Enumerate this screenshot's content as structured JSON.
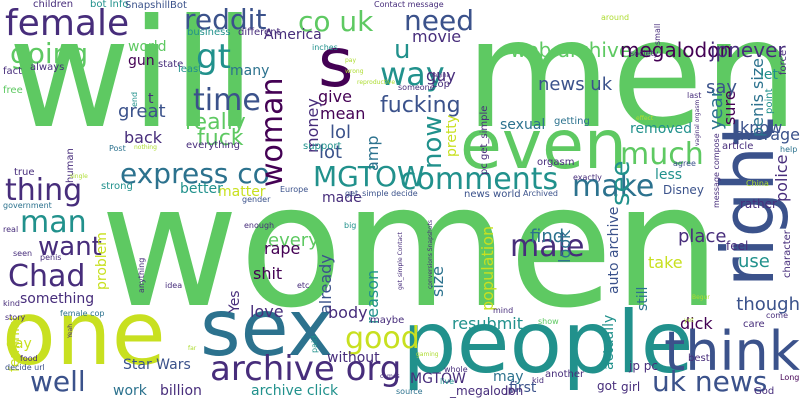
{
  "colors": {
    "background": "#ffffff",
    "palette": [
      "#440154",
      "#472d7b",
      "#3b528b",
      "#2c728e",
      "#21918c",
      "#28ae80",
      "#5ec962",
      "#addc30",
      "#fde725"
    ]
  },
  "words": [
    {
      "text": "women",
      "color": "#5ec962"
    },
    {
      "text": "will",
      "color": "#5ec962"
    },
    {
      "text": "men",
      "color": "#5ec962"
    },
    {
      "text": "people",
      "color": "#21918c"
    },
    {
      "text": "one",
      "color": "#c8e020"
    },
    {
      "text": "sex",
      "color": "#2c728e"
    },
    {
      "text": "right",
      "color": "#3b528b"
    },
    {
      "text": "even",
      "color": "#5ec962"
    },
    {
      "text": "s",
      "color": "#440154"
    },
    {
      "text": "think",
      "color": "#3b528b"
    },
    {
      "text": "female",
      "color": "#472d7b"
    },
    {
      "text": "archive org",
      "color": "#472d7b"
    },
    {
      "text": "uk news",
      "color": "#3b528b"
    },
    {
      "text": "express co",
      "color": "#2c728e"
    },
    {
      "text": "comments",
      "color": "#21918c"
    },
    {
      "text": "MGTOW",
      "color": "#21918c"
    },
    {
      "text": "make",
      "color": "#2c728e"
    },
    {
      "text": "thing",
      "color": "#472d7b"
    },
    {
      "text": "woman",
      "color": "#440154"
    },
    {
      "text": "going",
      "color": "#5ec962"
    },
    {
      "text": "way",
      "color": "#21918c"
    },
    {
      "text": "co uk",
      "color": "#5ec962"
    },
    {
      "text": "reddit",
      "color": "#3b528b"
    },
    {
      "text": "need",
      "color": "#3b528b"
    },
    {
      "text": "time",
      "color": "#3b528b"
    },
    {
      "text": "gt",
      "color": "#21918c"
    },
    {
      "text": "see",
      "color": "#21918c"
    },
    {
      "text": "much",
      "color": "#5ec962"
    },
    {
      "text": "man",
      "color": "#21918c"
    },
    {
      "text": "want",
      "color": "#472d7b"
    },
    {
      "text": "Chad",
      "color": "#472d7b"
    },
    {
      "text": "well",
      "color": "#3b528b"
    },
    {
      "text": "good",
      "color": "#c8e020"
    },
    {
      "text": "male",
      "color": "#472d7b"
    },
    {
      "text": "now",
      "color": "#21918c"
    },
    {
      "text": "u",
      "color": "#21918c"
    },
    {
      "text": "web archive",
      "color": "#5ec962"
    },
    {
      "text": "megalodon",
      "color": "#440154"
    },
    {
      "text": "jpnever",
      "color": "#472d7b"
    },
    {
      "text": "news uk",
      "color": "#3b528b"
    },
    {
      "text": "fucking",
      "color": "#3b528b"
    },
    {
      "text": "really",
      "color": "#5ec962"
    },
    {
      "text": "fuck",
      "color": "#5ec962"
    },
    {
      "text": "lol",
      "color": "#3b528b"
    },
    {
      "text": "lot",
      "color": "#3b528b"
    },
    {
      "text": "give",
      "color": "#440154"
    },
    {
      "text": "mean",
      "color": "#440154"
    },
    {
      "text": "money",
      "color": "#472d7b"
    },
    {
      "text": "amp",
      "color": "#2c728e"
    },
    {
      "text": "movie",
      "color": "#472d7b"
    },
    {
      "text": "guy",
      "color": "#472d7b"
    },
    {
      "text": "say",
      "color": "#3b528b"
    },
    {
      "text": "year",
      "color": "#2c728e"
    },
    {
      "text": "sure",
      "color": "#440154"
    },
    {
      "text": "know",
      "color": "#3b528b"
    },
    {
      "text": "average",
      "color": "#3b528b"
    },
    {
      "text": "penis size",
      "color": "#2c728e"
    },
    {
      "text": "police",
      "color": "#472d7b"
    },
    {
      "text": "less",
      "color": "#21918c"
    },
    {
      "text": "removed",
      "color": "#21918c"
    },
    {
      "text": "sexual",
      "color": "#2c728e"
    },
    {
      "text": "look",
      "color": "#2c728e"
    },
    {
      "text": "pretty",
      "color": "#c8e020"
    },
    {
      "text": "population",
      "color": "#c8e020"
    },
    {
      "text": "reason",
      "color": "#21918c"
    },
    {
      "text": "size",
      "color": "#2c728e"
    },
    {
      "text": "auto archive",
      "color": "#3b528b"
    },
    {
      "text": "find",
      "color": "#2c728e"
    },
    {
      "text": "place",
      "color": "#472d7b"
    },
    {
      "text": "take",
      "color": "#c8e020"
    },
    {
      "text": "use",
      "color": "#21918c"
    },
    {
      "text": "still",
      "color": "#2c728e"
    },
    {
      "text": "though",
      "color": "#3b528b"
    },
    {
      "text": "dick",
      "color": "#440154"
    },
    {
      "text": "actually",
      "color": "#21918c"
    },
    {
      "text": "resubmit",
      "color": "#21918c"
    },
    {
      "text": "already",
      "color": "#3b528b"
    },
    {
      "text": "every",
      "color": "#5ec962"
    },
    {
      "text": "rape",
      "color": "#440154"
    },
    {
      "text": "shit",
      "color": "#440154"
    },
    {
      "text": "made",
      "color": "#472d7b"
    },
    {
      "text": "body",
      "color": "#472d7b"
    },
    {
      "text": "love",
      "color": "#472d7b"
    },
    {
      "text": "Yes",
      "color": "#472d7b"
    },
    {
      "text": "matter",
      "color": "#c8e020"
    },
    {
      "text": "better",
      "color": "#21918c"
    },
    {
      "text": "great",
      "color": "#3b528b"
    },
    {
      "text": "back",
      "color": "#472d7b"
    },
    {
      "text": "world",
      "color": "#5ec962"
    },
    {
      "text": "gun",
      "color": "#440154"
    },
    {
      "text": "America",
      "color": "#472d7b"
    },
    {
      "text": "many",
      "color": "#2c728e"
    },
    {
      "text": "something",
      "color": "#472d7b"
    },
    {
      "text": "problem",
      "color": "#c8e020"
    },
    {
      "text": "feminist",
      "color": "#c8e020"
    },
    {
      "text": "day",
      "color": "#c8e020"
    },
    {
      "text": "Star Wars",
      "color": "#3b528b"
    },
    {
      "text": "work",
      "color": "#2c728e"
    },
    {
      "text": "billion",
      "color": "#472d7b"
    },
    {
      "text": "archive click",
      "color": "#21918c"
    },
    {
      "text": "without",
      "color": "#472d7b"
    },
    {
      "text": "MGTOW",
      "color": "#472d7b"
    },
    {
      "text": "may",
      "color": "#2c728e"
    },
    {
      "text": "first",
      "color": "#3b528b"
    },
    {
      "text": "_megalodon",
      "color": "#472d7b"
    },
    {
      "text": "jp",
      "color": "#472d7b"
    },
    {
      "text": "got",
      "color": "#472d7b"
    },
    {
      "text": "girl",
      "color": "#472d7b"
    },
    {
      "text": "jp pc",
      "color": "#472d7b"
    },
    {
      "text": "t",
      "color": "#472d7b"
    },
    {
      "text": "maybe",
      "color": "#472d7b"
    },
    {
      "text": "another",
      "color": "#472d7b"
    },
    {
      "text": "kid",
      "color": "#472d7b"
    },
    {
      "text": "source",
      "color": "#2c728e"
    },
    {
      "text": "live",
      "color": "#21918c"
    },
    {
      "text": "best",
      "color": "#472d7b"
    },
    {
      "text": "God",
      "color": "#472d7b"
    },
    {
      "text": "Long",
      "color": "#440154"
    },
    {
      "text": "children",
      "color": "#472d7b"
    },
    {
      "text": "bot Info",
      "color": "#21918c"
    },
    {
      "text": "SnapshillBot",
      "color": "#3b528b"
    },
    {
      "text": "Contact message",
      "color": "#472d7b"
    },
    {
      "text": "around",
      "color": "#addc30"
    },
    {
      "text": "business",
      "color": "#21918c"
    },
    {
      "text": "different",
      "color": "#472d7b"
    },
    {
      "text": "state",
      "color": "#472d7b"
    },
    {
      "text": "least",
      "color": "#21918c"
    },
    {
      "text": "always",
      "color": "#472d7b"
    },
    {
      "text": "inches",
      "color": "#21918c"
    },
    {
      "text": "someone",
      "color": "#472d7b"
    },
    {
      "text": "cop",
      "color": "#472d7b"
    },
    {
      "text": "pc get_simple",
      "color": "#472d7b"
    },
    {
      "text": "getting",
      "color": "#2c728e"
    },
    {
      "text": "orgasm",
      "color": "#472d7b"
    },
    {
      "text": "fact",
      "color": "#472d7b"
    },
    {
      "text": "free",
      "color": "#5ec962"
    },
    {
      "text": "end",
      "color": "#21918c"
    },
    {
      "text": "support",
      "color": "#21918c"
    },
    {
      "text": "everything",
      "color": "#472d7b"
    },
    {
      "text": "Post",
      "color": "#2c728e"
    },
    {
      "text": "nothing",
      "color": "#addc30"
    },
    {
      "text": "true",
      "color": "#472d7b"
    },
    {
      "text": "human",
      "color": "#472d7b"
    },
    {
      "text": "single",
      "color": "#addc30"
    },
    {
      "text": "strong",
      "color": "#21918c"
    },
    {
      "text": "Europe",
      "color": "#3b528b"
    },
    {
      "text": "gender",
      "color": "#3b528b"
    },
    {
      "text": "get_simple decide",
      "color": "#3b528b"
    },
    {
      "text": "news world",
      "color": "#3b528b"
    },
    {
      "text": "Archived",
      "color": "#3b528b"
    },
    {
      "text": "exactly",
      "color": "#472d7b"
    },
    {
      "text": "Disney",
      "color": "#3b528b"
    },
    {
      "text": "agree",
      "color": "#3b528b"
    },
    {
      "text": "China",
      "color": "#addc30"
    },
    {
      "text": "rather",
      "color": "#472d7b"
    },
    {
      "text": "character",
      "color": "#472d7b"
    },
    {
      "text": "article",
      "color": "#472d7b"
    },
    {
      "text": "help",
      "color": "#2c728e"
    },
    {
      "text": "feel",
      "color": "#472d7b"
    },
    {
      "text": "care",
      "color": "#472d7b"
    },
    {
      "text": "come",
      "color": "#472d7b"
    },
    {
      "text": "let",
      "color": "#21918c"
    },
    {
      "text": "point",
      "color": "#21918c"
    },
    {
      "text": "force",
      "color": "#472d7b"
    },
    {
      "text": "society",
      "color": "#472d7b"
    },
    {
      "text": "last",
      "color": "#472d7b"
    },
    {
      "text": "small",
      "color": "#472d7b"
    },
    {
      "text": "government",
      "color": "#2c728e"
    },
    {
      "text": "real",
      "color": "#472d7b"
    },
    {
      "text": "seen",
      "color": "#472d7b"
    },
    {
      "text": "penis",
      "color": "#472d7b"
    },
    {
      "text": "kind",
      "color": "#472d7b"
    },
    {
      "text": "female cop",
      "color": "#2c728e"
    },
    {
      "text": "story",
      "color": "#472d7b"
    },
    {
      "text": "food",
      "color": "#472d7b"
    },
    {
      "text": "decide url",
      "color": "#3b528b"
    },
    {
      "text": "anything",
      "color": "#472d7b"
    },
    {
      "text": "idea",
      "color": "#472d7b"
    },
    {
      "text": "enough",
      "color": "#472d7b"
    },
    {
      "text": "big",
      "color": "#21918c"
    },
    {
      "text": "etc",
      "color": "#472d7b"
    },
    {
      "text": "paid",
      "color": "#21918c"
    },
    {
      "text": "whole",
      "color": "#472d7b"
    },
    {
      "text": "mind",
      "color": "#472d7b"
    },
    {
      "text": "show",
      "color": "#5ec962"
    },
    {
      "text": "far",
      "color": "#addc30"
    },
    {
      "text": "Yeah",
      "color": "#472d7b"
    },
    {
      "text": "comes",
      "color": "#472d7b"
    },
    {
      "text": "message compose",
      "color": "#472d7b"
    },
    {
      "text": "vagina",
      "color": "#472d7b"
    },
    {
      "text": "pay",
      "color": "#addc30"
    },
    {
      "text": "wrong",
      "color": "#addc30"
    },
    {
      "text": "gaming",
      "color": "#addc30"
    },
    {
      "text": "effect",
      "color": "#addc30"
    },
    {
      "text": "vaginal orgasm",
      "color": "#472d7b"
    },
    {
      "text": "reproductive",
      "color": "#addc30"
    },
    {
      "text": "conversions Snapshots",
      "color": "#472d7b"
    },
    {
      "text": "get_simple Contact",
      "color": "#472d7b"
    },
    {
      "text": "Begur",
      "color": "#addc30"
    },
    {
      "text": "yet",
      "color": "#addc30"
    }
  ]
}
